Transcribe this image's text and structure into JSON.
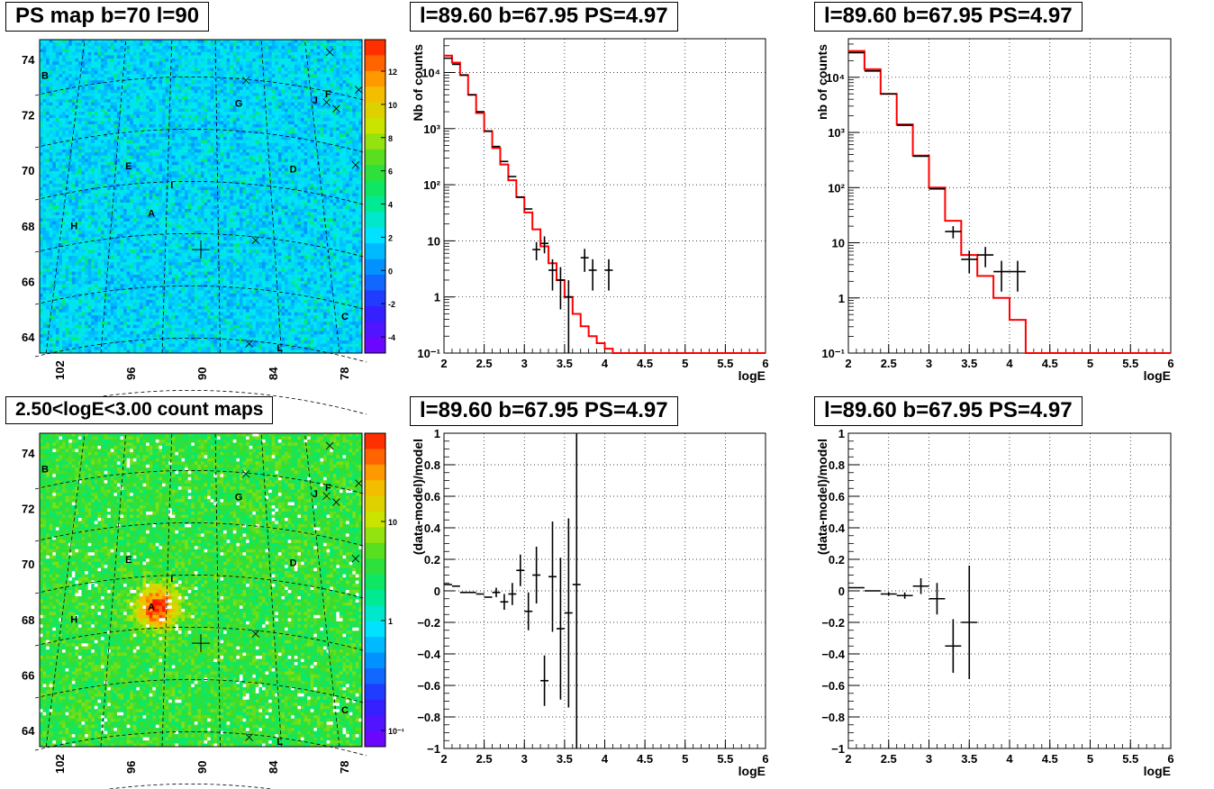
{
  "titles": {
    "map_top": "PS map b=70 l=90",
    "map_bottom": "2.50<logE<3.00 count maps",
    "spec_tl": "l=89.60 b=67.95 PS=4.97",
    "spec_tr": "l=89.60 b=67.95 PS=4.97",
    "res_bl": "l=89.60 b=67.95 PS=4.97",
    "res_br": "l=89.60 b=67.95 PS=4.97"
  },
  "colors": {
    "model_line": "#ff0000",
    "data_marker": "#000000",
    "grid": "#000000"
  },
  "chart_data": [
    {
      "id": "ps_map",
      "type": "heatmap",
      "title": "PS map b=70 l=90",
      "x_ticks": [
        "102",
        "96",
        "90",
        "84",
        "78"
      ],
      "y_ticks": [
        "64",
        "66",
        "68",
        "70",
        "72",
        "74"
      ],
      "colorbar_ticks": [
        "-4",
        "-2",
        "0",
        "2",
        "4",
        "6",
        "8",
        "10",
        "12"
      ],
      "colorbar_range": [
        -5,
        12
      ],
      "source_labels": [
        "A",
        "B",
        "C",
        "D",
        "E",
        "F",
        "G",
        "H",
        "I",
        "J",
        "L"
      ]
    },
    {
      "id": "count_map",
      "type": "heatmap",
      "title": "2.50<logE<3.00 count maps",
      "x_ticks": [
        "102",
        "96",
        "90",
        "84",
        "78"
      ],
      "y_ticks": [
        "64",
        "66",
        "68",
        "70",
        "72",
        "74"
      ],
      "colorbar_ticks": [
        "10⁻¹",
        "1",
        "10"
      ],
      "colorbar_scale": "log",
      "source_labels": [
        "A",
        "B",
        "C",
        "D",
        "E",
        "F",
        "G",
        "H",
        "I",
        "J",
        "L"
      ]
    },
    {
      "id": "spectrum_left",
      "type": "line",
      "title": "l=89.60 b=67.95 PS=4.97",
      "xlabel": "logE",
      "ylabel": "Nb of counts",
      "xlim": [
        2,
        6
      ],
      "ylim": [
        0.1,
        40000
      ],
      "y_scale": "log",
      "x_ticks": [
        "2",
        "2.5",
        "3",
        "3.5",
        "4",
        "4.5",
        "5",
        "5.5",
        "6"
      ],
      "y_ticks": [
        "10⁻¹",
        "1",
        "10",
        "10²",
        "10³",
        "10⁴"
      ],
      "model_step": {
        "edges": [
          2,
          2.1,
          2.2,
          2.3,
          2.4,
          2.5,
          2.6,
          2.7,
          2.8,
          2.9,
          3.0,
          3.1,
          3.2,
          3.3,
          3.4,
          3.5,
          3.6,
          3.7,
          3.8,
          3.9,
          4.0,
          4.1,
          6.0
        ],
        "values": [
          20000,
          15000,
          9000,
          4000,
          1900,
          900,
          450,
          230,
          120,
          60,
          32,
          16,
          8,
          4,
          2,
          1,
          0.5,
          0.3,
          0.2,
          0.15,
          0.12,
          0.1
        ]
      },
      "data_points": [
        {
          "x": 2.05,
          "y": 18000,
          "xerr": 0.05,
          "yerr": 0
        },
        {
          "x": 2.15,
          "y": 14000,
          "xerr": 0.05,
          "yerr": 0
        },
        {
          "x": 2.25,
          "y": 9000,
          "xerr": 0.05,
          "yerr": 0
        },
        {
          "x": 2.35,
          "y": 4000,
          "xerr": 0.05,
          "yerr": 0
        },
        {
          "x": 2.45,
          "y": 2000,
          "xerr": 0.05,
          "yerr": 0
        },
        {
          "x": 2.55,
          "y": 900,
          "xerr": 0.05,
          "yerr": 0
        },
        {
          "x": 2.65,
          "y": 480,
          "xerr": 0.05,
          "yerr": 0
        },
        {
          "x": 2.75,
          "y": 260,
          "xerr": 0.05,
          "yerr": 0
        },
        {
          "x": 2.85,
          "y": 140,
          "xerr": 0.05,
          "yerr": 0
        },
        {
          "x": 2.95,
          "y": 60,
          "xerr": 0.05,
          "yerr": 0
        },
        {
          "x": 3.05,
          "y": 37,
          "xerr": 0.05,
          "yerr": 0
        },
        {
          "x": 3.15,
          "y": 7,
          "xerr": 0.05,
          "yerr": 2.5
        },
        {
          "x": 3.25,
          "y": 9,
          "xerr": 0.05,
          "yerr": 3
        },
        {
          "x": 3.35,
          "y": 3,
          "xerr": 0.05,
          "yerr": 1.7
        },
        {
          "x": 3.45,
          "y": 2,
          "xerr": 0.05,
          "yerr": 1.4
        },
        {
          "x": 3.55,
          "y": 1,
          "xerr": 0.05,
          "yerr": 0.99
        },
        {
          "x": 3.75,
          "y": 5,
          "xerr": 0.05,
          "yerr": 2.2
        },
        {
          "x": 3.85,
          "y": 3,
          "xerr": 0.05,
          "yerr": 1.7
        },
        {
          "x": 4.05,
          "y": 3,
          "xerr": 0.05,
          "yerr": 1.7
        }
      ]
    },
    {
      "id": "spectrum_right",
      "type": "line",
      "title": "l=89.60 b=67.95 PS=4.97",
      "xlabel": "logE",
      "ylabel": "nb of counts",
      "xlim": [
        2,
        6
      ],
      "ylim": [
        0.1,
        50000
      ],
      "y_scale": "log",
      "x_ticks": [
        "2",
        "2.5",
        "3",
        "3.5",
        "4",
        "4.5",
        "5",
        "5.5",
        "6"
      ],
      "y_ticks": [
        "10⁻¹",
        "1",
        "10",
        "10²",
        "10³",
        "10⁴"
      ],
      "model_step": {
        "edges": [
          2,
          2.2,
          2.4,
          2.6,
          2.8,
          3.0,
          3.2,
          3.4,
          3.6,
          3.8,
          4.0,
          4.2,
          6.0
        ],
        "values": [
          30000,
          14000,
          5000,
          1400,
          380,
          100,
          25,
          6,
          2.5,
          1,
          0.4,
          0.1
        ]
      },
      "data_points": [
        {
          "x": 2.1,
          "y": 28000,
          "xerr": 0.1,
          "yerr": 0
        },
        {
          "x": 2.3,
          "y": 13000,
          "xerr": 0.1,
          "yerr": 0
        },
        {
          "x": 2.5,
          "y": 5000,
          "xerr": 0.1,
          "yerr": 0
        },
        {
          "x": 2.7,
          "y": 1350,
          "xerr": 0.1,
          "yerr": 0
        },
        {
          "x": 2.9,
          "y": 370,
          "xerr": 0.1,
          "yerr": 0
        },
        {
          "x": 3.1,
          "y": 95,
          "xerr": 0.1,
          "yerr": 0
        },
        {
          "x": 3.3,
          "y": 16,
          "xerr": 0.1,
          "yerr": 4
        },
        {
          "x": 3.5,
          "y": 5,
          "xerr": 0.1,
          "yerr": 2.2
        },
        {
          "x": 3.7,
          "y": 6,
          "xerr": 0.1,
          "yerr": 2.4
        },
        {
          "x": 3.9,
          "y": 3,
          "xerr": 0.1,
          "yerr": 1.7
        },
        {
          "x": 4.1,
          "y": 3,
          "xerr": 0.1,
          "yerr": 1.7
        }
      ]
    },
    {
      "id": "residual_left",
      "type": "scatter",
      "title": "l=89.60 b=67.95 PS=4.97",
      "xlabel": "logE",
      "ylabel": "(data-model)/model",
      "xlim": [
        2,
        6
      ],
      "ylim": [
        -1,
        1
      ],
      "x_ticks": [
        "2",
        "2.5",
        "3",
        "3.5",
        "4",
        "4.5",
        "5",
        "5.5",
        "6"
      ],
      "y_ticks": [
        "−1",
        "−0.8",
        "−0.6",
        "−0.4",
        "−0.2",
        "0",
        "0.2",
        "0.4",
        "0.6",
        "0.8",
        "1"
      ],
      "data_points": [
        {
          "x": 2.05,
          "y": 0.04,
          "xerr": 0.05,
          "yerr": 0
        },
        {
          "x": 2.15,
          "y": 0.03,
          "xerr": 0.05,
          "yerr": 0
        },
        {
          "x": 2.25,
          "y": -0.01,
          "xerr": 0.05,
          "yerr": 0
        },
        {
          "x": 2.35,
          "y": -0.01,
          "xerr": 0.05,
          "yerr": 0
        },
        {
          "x": 2.45,
          "y": -0.02,
          "xerr": 0.05,
          "yerr": 0
        },
        {
          "x": 2.55,
          "y": -0.04,
          "xerr": 0.05,
          "yerr": 0
        },
        {
          "x": 2.65,
          "y": -0.01,
          "xerr": 0.05,
          "yerr": 0.03
        },
        {
          "x": 2.75,
          "y": -0.07,
          "xerr": 0.05,
          "yerr": 0.05
        },
        {
          "x": 2.85,
          "y": -0.02,
          "xerr": 0.05,
          "yerr": 0.07
        },
        {
          "x": 2.95,
          "y": 0.13,
          "xerr": 0.05,
          "yerr": 0.1
        },
        {
          "x": 3.05,
          "y": -0.13,
          "xerr": 0.05,
          "yerr": 0.12
        },
        {
          "x": 3.15,
          "y": 0.1,
          "xerr": 0.05,
          "yerr": 0.18
        },
        {
          "x": 3.25,
          "y": -0.57,
          "xerr": 0.05,
          "yerr": 0.16
        },
        {
          "x": 3.35,
          "y": 0.09,
          "xerr": 0.05,
          "yerr": 0.35
        },
        {
          "x": 3.45,
          "y": -0.24,
          "xerr": 0.05,
          "yerr": 0.45
        },
        {
          "x": 3.55,
          "y": -0.14,
          "xerr": 0.05,
          "yerr": 0.6
        },
        {
          "x": 3.65,
          "y": 0.04,
          "xerr": 0.05,
          "yerr": 1.2
        }
      ]
    },
    {
      "id": "residual_right",
      "type": "scatter",
      "title": "l=89.60 b=67.95 PS=4.97",
      "xlabel": "logE",
      "ylabel": "(data-model)/model",
      "xlim": [
        2,
        6
      ],
      "ylim": [
        -1,
        1
      ],
      "x_ticks": [
        "2",
        "2.5",
        "3",
        "3.5",
        "4",
        "4.5",
        "5",
        "5.5",
        "6"
      ],
      "y_ticks": [
        "−1",
        "−0.8",
        "−0.6",
        "−0.4",
        "−0.2",
        "0",
        "0.2",
        "0.4",
        "0.6",
        "0.8",
        "1"
      ],
      "data_points": [
        {
          "x": 2.1,
          "y": 0.02,
          "xerr": 0.1,
          "yerr": 0
        },
        {
          "x": 2.3,
          "y": 0.0,
          "xerr": 0.1,
          "yerr": 0
        },
        {
          "x": 2.5,
          "y": -0.02,
          "xerr": 0.1,
          "yerr": 0.01
        },
        {
          "x": 2.7,
          "y": -0.03,
          "xerr": 0.1,
          "yerr": 0.02
        },
        {
          "x": 2.9,
          "y": 0.03,
          "xerr": 0.1,
          "yerr": 0.05
        },
        {
          "x": 3.1,
          "y": -0.05,
          "xerr": 0.1,
          "yerr": 0.1
        },
        {
          "x": 3.3,
          "y": -0.35,
          "xerr": 0.1,
          "yerr": 0.17
        },
        {
          "x": 3.5,
          "y": -0.2,
          "xerr": 0.1,
          "yerr": 0.36
        }
      ]
    }
  ]
}
